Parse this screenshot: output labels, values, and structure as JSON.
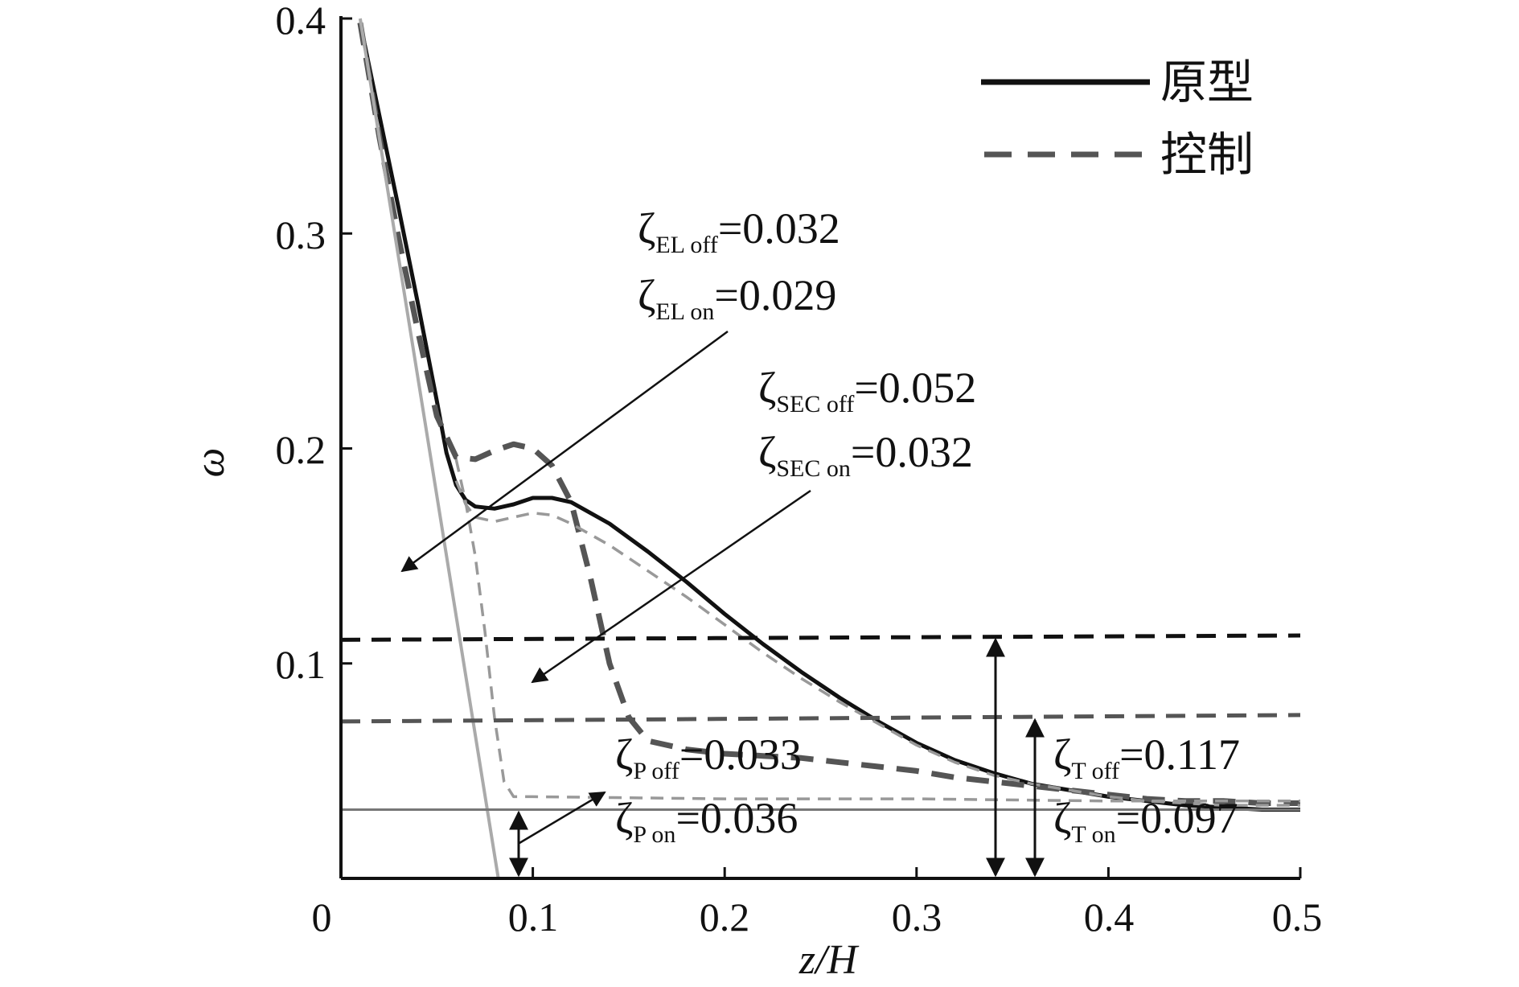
{
  "chart_data": {
    "type": "line",
    "title": "",
    "xlabel": "z/H",
    "ylabel": "ω",
    "xlim": [
      0,
      0.5
    ],
    "ylim": [
      0,
      0.4
    ],
    "x_ticks": [
      "0",
      "0.1",
      "0.2",
      "0.3",
      "0.4",
      "0.5"
    ],
    "y_ticks": [
      "0.1",
      "0.2",
      "0.3",
      "0.4"
    ],
    "grid": false,
    "legend_position": "top-right",
    "legend": [
      {
        "label": "原型",
        "style": "solid",
        "color": "#111111"
      },
      {
        "label": "控制",
        "style": "dashed",
        "color": "#555555"
      }
    ],
    "series": [
      {
        "name": "原型",
        "style": "solid",
        "color": "#111111",
        "x": [
          0.01,
          0.02,
          0.03,
          0.04,
          0.05,
          0.055,
          0.06,
          0.065,
          0.07,
          0.08,
          0.09,
          0.1,
          0.11,
          0.12,
          0.14,
          0.16,
          0.18,
          0.2,
          0.22,
          0.24,
          0.26,
          0.28,
          0.3,
          0.32,
          0.34,
          0.36,
          0.38,
          0.4,
          0.42,
          0.44,
          0.46,
          0.48,
          0.5
        ],
        "y": [
          0.398,
          0.355,
          0.312,
          0.268,
          0.222,
          0.198,
          0.183,
          0.176,
          0.173,
          0.172,
          0.174,
          0.177,
          0.177,
          0.175,
          0.165,
          0.152,
          0.138,
          0.123,
          0.109,
          0.096,
          0.084,
          0.073,
          0.063,
          0.055,
          0.049,
          0.044,
          0.041,
          0.038,
          0.036,
          0.034,
          0.033,
          0.032,
          0.032
        ]
      },
      {
        "name": "控制",
        "style": "dashed",
        "color": "#555555",
        "x": [
          0.01,
          0.02,
          0.03,
          0.04,
          0.05,
          0.06,
          0.07,
          0.08,
          0.09,
          0.1,
          0.11,
          0.12,
          0.13,
          0.14,
          0.15,
          0.16,
          0.18,
          0.2,
          0.22,
          0.24,
          0.26,
          0.28,
          0.3,
          0.32,
          0.34,
          0.36,
          0.38,
          0.4,
          0.42,
          0.44,
          0.46,
          0.48,
          0.5
        ],
        "y": [
          0.398,
          0.345,
          0.298,
          0.255,
          0.215,
          0.196,
          0.195,
          0.199,
          0.202,
          0.2,
          0.192,
          0.175,
          0.14,
          0.1,
          0.075,
          0.064,
          0.06,
          0.058,
          0.057,
          0.056,
          0.054,
          0.052,
          0.05,
          0.047,
          0.045,
          0.043,
          0.041,
          0.039,
          0.037,
          0.036,
          0.036,
          0.035,
          0.035
        ]
      },
      {
        "style": "dashed-light",
        "color": "#999999",
        "x": [
          0.06,
          0.065,
          0.07,
          0.08,
          0.09,
          0.1,
          0.11,
          0.12,
          0.14,
          0.16,
          0.18,
          0.2,
          0.22,
          0.24,
          0.26,
          0.28,
          0.3,
          0.32,
          0.34,
          0.36,
          0.38,
          0.4,
          0.42,
          0.44,
          0.46,
          0.48,
          0.5
        ],
        "y": [
          0.185,
          0.174,
          0.168,
          0.166,
          0.168,
          0.17,
          0.169,
          0.165,
          0.155,
          0.143,
          0.131,
          0.118,
          0.105,
          0.093,
          0.082,
          0.072,
          0.062,
          0.054,
          0.048,
          0.044,
          0.041,
          0.038,
          0.036,
          0.035,
          0.034,
          0.034,
          0.034
        ]
      },
      {
        "style": "dashed-light",
        "color": "#999999",
        "x": [
          0.06,
          0.065,
          0.07,
          0.075,
          0.08,
          0.085,
          0.09,
          0.1,
          0.2,
          0.3,
          0.4,
          0.5
        ],
        "y": [
          0.195,
          0.175,
          0.15,
          0.115,
          0.075,
          0.045,
          0.038,
          0.038,
          0.037,
          0.037,
          0.036,
          0.036
        ]
      },
      {
        "style": "solid-light",
        "color": "#aaaaaa",
        "x": [
          0.01,
          0.082
        ],
        "y": [
          0.4,
          0.0
        ]
      },
      {
        "style": "solid-gray",
        "color": "#777777",
        "x": [
          0.0,
          0.5
        ],
        "y": [
          0.032,
          0.032
        ]
      },
      {
        "style": "dashed-black",
        "color": "#111111",
        "x": [
          0.0,
          0.5
        ],
        "y": [
          0.111,
          0.113
        ]
      },
      {
        "style": "dashed-gray",
        "color": "#555555",
        "x": [
          0.0,
          0.5
        ],
        "y": [
          0.073,
          0.076
        ]
      }
    ],
    "annotations": [
      {
        "symbol": "ζ",
        "sub": "EL off",
        "text": "=0.032"
      },
      {
        "symbol": "ζ",
        "sub": "EL on",
        "text": "=0.029"
      },
      {
        "symbol": "ζ",
        "sub": "SEC off",
        "text": "=0.052"
      },
      {
        "symbol": "ζ",
        "sub": "SEC on",
        "text": "=0.032"
      },
      {
        "symbol": "ζ",
        "sub": "P off",
        "text": "=0.033"
      },
      {
        "symbol": "ζ",
        "sub": "P on",
        "text": "=0.036"
      },
      {
        "symbol": "ζ",
        "sub": "T off",
        "text": "=0.117"
      },
      {
        "symbol": "ζ",
        "sub": "T on",
        "text": "=0.097"
      }
    ]
  }
}
